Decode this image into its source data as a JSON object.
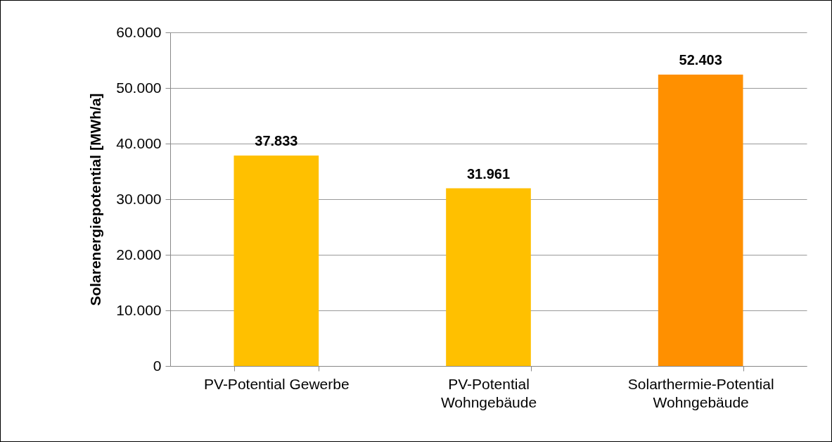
{
  "chart_data": {
    "type": "bar",
    "ylabel": "Solarenergiepotential [MWh/a]",
    "categories": [
      "PV-Potential Gewerbe",
      "PV-Potential Wohngebäude",
      "Solarthermie-Potential Wohngebäude"
    ],
    "values": [
      37833,
      31961,
      52403
    ],
    "colors": [
      "#ffc000",
      "#ffc000",
      "#ff9000"
    ],
    "value_labels": [
      "37.833",
      "31.961",
      "52.403"
    ],
    "ylim": [
      0,
      60000
    ],
    "yticks": [
      0,
      {
        "value": 10000,
        "label": "10.000"
      },
      {
        "value": 20000,
        "label": "20.000"
      },
      {
        "value": 30000,
        "label": "30.000"
      },
      {
        "value": 40000,
        "label": "40.000"
      },
      {
        "value": 50000,
        "label": "50.000"
      },
      {
        "value": 60000,
        "label": "60.000"
      }
    ],
    "grid": "y"
  }
}
